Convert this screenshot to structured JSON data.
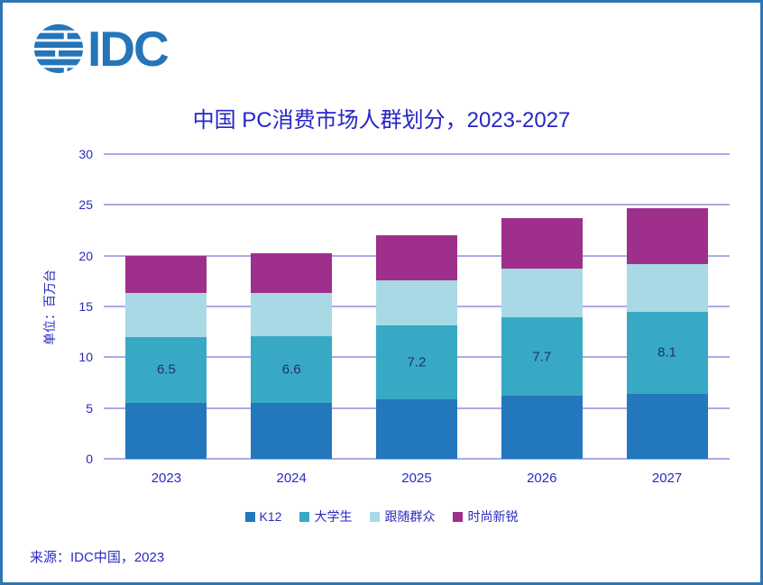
{
  "window": {
    "border_color": "#2e75b6",
    "background": "#ffffff"
  },
  "logo": {
    "brand": "IDC",
    "color": "#2575b9"
  },
  "header": {
    "title": "中国 PC消费市场人群划分，2023-2027"
  },
  "chart_data": {
    "type": "bar",
    "stacked": true,
    "title": "中国 PC消费市场人群划分，2023-2027",
    "categories": [
      "2023",
      "2024",
      "2025",
      "2026",
      "2027"
    ],
    "series": [
      {
        "name": "K12",
        "color": "#2377bd",
        "values": [
          5.5,
          5.5,
          5.9,
          6.2,
          6.4
        ]
      },
      {
        "name": "大学生",
        "color": "#38a9c4",
        "values": [
          6.5,
          6.6,
          7.2,
          7.7,
          8.1
        ],
        "labels": [
          "6.5",
          "6.6",
          "7.2",
          "7.7",
          "8.1"
        ]
      },
      {
        "name": "跟随群众",
        "color": "#a9d9e5",
        "values": [
          4.3,
          4.2,
          4.5,
          4.8,
          4.7
        ]
      },
      {
        "name": "时尚新锐",
        "color": "#9e2f8a",
        "values": [
          3.7,
          3.9,
          4.4,
          5.0,
          5.5
        ]
      }
    ],
    "totals": [
      20.0,
      20.2,
      22.0,
      23.7,
      24.7
    ],
    "xlabel": "",
    "ylabel": "单位：百万台",
    "ylim": [
      0,
      30
    ],
    "yticks": [
      0,
      5,
      10,
      15,
      20,
      25,
      30
    ],
    "grid": true,
    "gridline_color": "#abaae7",
    "legend_position": "bottom",
    "value_labels_on_series": "大学生"
  },
  "footer": {
    "source": "来源：IDC中国，2023"
  }
}
